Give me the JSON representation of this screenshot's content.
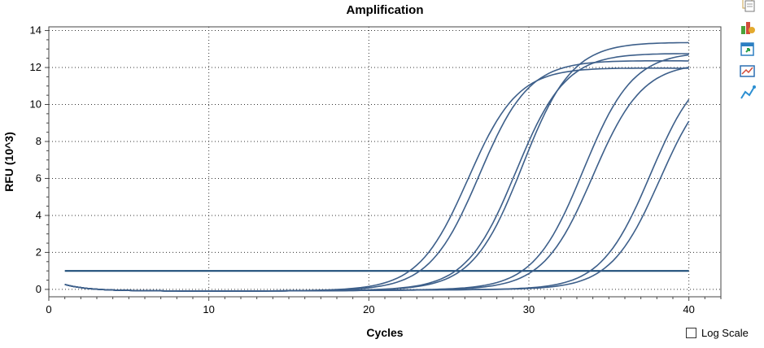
{
  "chart_data": {
    "type": "line",
    "title": "Amplification",
    "xlabel": "Cycles",
    "ylabel": "RFU (10^3)",
    "xlim": [
      0,
      42
    ],
    "ylim": [
      -0.4,
      14.2
    ],
    "xticks": [
      0,
      10,
      20,
      30,
      40
    ],
    "yticks": [
      0,
      2,
      4,
      6,
      8,
      10,
      12,
      14
    ],
    "grid": true,
    "threshold": 1.0,
    "line_color": "#3d5f8a",
    "threshold_color": "#1f4e79",
    "curves": [
      {
        "plateau": 12.0,
        "midpoint": 26.2
      },
      {
        "plateau": 12.4,
        "midpoint": 26.9
      },
      {
        "plateau": 12.8,
        "midpoint": 29.2
      },
      {
        "plateau": 13.4,
        "midpoint": 29.6
      },
      {
        "plateau": 12.9,
        "midpoint": 33.4
      },
      {
        "plateau": 12.3,
        "midpoint": 34.0
      },
      {
        "plateau": 12.5,
        "midpoint": 37.6
      },
      {
        "plateau": 12.0,
        "midpoint": 38.2
      }
    ]
  },
  "toolbar": {
    "icons": [
      "copy-icon",
      "export-icon",
      "refresh-icon",
      "chart-settings-icon",
      "trace-style-icon"
    ]
  },
  "controls": {
    "log_scale_label": "Log Scale",
    "log_scale_checked": false
  }
}
